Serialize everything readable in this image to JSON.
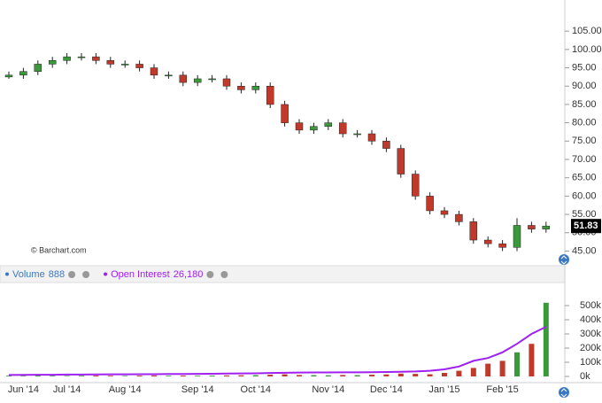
{
  "chart_data": [
    {
      "type": "candlestick",
      "annotation": "© Barchart.com",
      "up_color": "#3a9a3a",
      "down_color": "#c0392b",
      "open": [
        92.5,
        93,
        94,
        96,
        97,
        98,
        98,
        97,
        96,
        96,
        95,
        93,
        93,
        91,
        92,
        92,
        90,
        89,
        90,
        85,
        80,
        78,
        79,
        80,
        77,
        77,
        75,
        73,
        66,
        60,
        56,
        55,
        53,
        48,
        47,
        46,
        52,
        51
      ],
      "high": [
        94,
        95,
        97,
        98,
        99,
        99,
        99,
        98,
        97,
        97,
        96,
        94,
        94,
        93,
        93,
        93,
        91,
        91,
        91,
        86,
        81,
        80,
        81,
        81,
        78,
        78,
        76,
        74,
        67,
        61,
        57,
        56,
        54,
        49,
        48,
        54,
        53,
        53
      ],
      "low": [
        92,
        92,
        93,
        95,
        96,
        97,
        96,
        95,
        95,
        94,
        92,
        92,
        90,
        90,
        91,
        89,
        88,
        88,
        84,
        79,
        77,
        77,
        78,
        76,
        76,
        74,
        72,
        65,
        59,
        55,
        54,
        52,
        47,
        46,
        45,
        45,
        50,
        50
      ],
      "close": [
        93,
        94,
        96,
        97,
        98,
        98,
        97,
        96,
        96,
        95,
        93,
        93,
        91,
        92,
        92,
        90,
        89,
        90,
        85,
        80,
        78,
        79,
        80,
        77,
        77,
        75,
        73,
        66,
        60,
        56,
        55,
        53,
        48,
        47,
        46,
        52,
        51,
        51.83
      ],
      "ylim": [
        41,
        113.5
      ],
      "yticks": [
        {
          "value": 45,
          "label": "45.00"
        },
        {
          "value": 50,
          "label": "50.00"
        },
        {
          "value": 55,
          "label": "55.00"
        },
        {
          "value": 60,
          "label": "60.00"
        },
        {
          "value": 65,
          "label": "65.00"
        },
        {
          "value": 70,
          "label": "70.00"
        },
        {
          "value": 75,
          "label": "75.00"
        },
        {
          "value": 80,
          "label": "80.00"
        },
        {
          "value": 85,
          "label": "85.00"
        },
        {
          "value": 90,
          "label": "90.00"
        },
        {
          "value": 95,
          "label": "95.00"
        },
        {
          "value": 100,
          "label": "100.00"
        },
        {
          "value": 105,
          "label": "105.00"
        }
      ]
    },
    {
      "type": "volume",
      "categories": [
        null,
        "Jun '14",
        null,
        null,
        "Jul '14",
        null,
        null,
        null,
        "Aug '14",
        null,
        null,
        null,
        null,
        "Sep '14",
        null,
        null,
        null,
        "Oct '14",
        null,
        null,
        null,
        null,
        "Nov '14",
        null,
        null,
        null,
        "Dec '14",
        null,
        null,
        null,
        "Jan '15",
        null,
        null,
        null,
        "Feb '15",
        null,
        null,
        null
      ],
      "series": [
        {
          "name": "Volume",
          "legend_value": "888",
          "color": "#3a78c4",
          "type": "bar",
          "values": [
            5000,
            4000,
            6000,
            5000,
            4000,
            5000,
            6000,
            5000,
            4000,
            6000,
            7000,
            5000,
            6000,
            5000,
            6000,
            7000,
            8000,
            9000,
            12000,
            15000,
            10000,
            9000,
            8000,
            10000,
            9000,
            12000,
            14000,
            20000,
            18000,
            15000,
            25000,
            40000,
            60000,
            90000,
            110000,
            170000,
            230000,
            520000
          ]
        },
        {
          "name": "Open Interest",
          "legend_value": "26,180",
          "color": "#a020f0",
          "type": "line",
          "values": [
            10000,
            11000,
            12000,
            12000,
            13000,
            13000,
            14000,
            15000,
            15000,
            16000,
            16000,
            17000,
            17000,
            18000,
            19000,
            20000,
            21000,
            22000,
            24000,
            26000,
            27000,
            28000,
            28000,
            29000,
            29000,
            30000,
            31000,
            33000,
            35000,
            40000,
            50000,
            70000,
            110000,
            130000,
            170000,
            230000,
            300000,
            350000
          ]
        }
      ],
      "ylim": [
        0,
        656250
      ],
      "yticks": [
        {
          "value": 0,
          "label": "0k"
        },
        {
          "value": 100000,
          "label": "100k"
        },
        {
          "value": 200000,
          "label": "200k"
        },
        {
          "value": 300000,
          "label": "300k"
        },
        {
          "value": 400000,
          "label": "400k"
        },
        {
          "value": 500000,
          "label": "500k"
        }
      ]
    }
  ]
}
